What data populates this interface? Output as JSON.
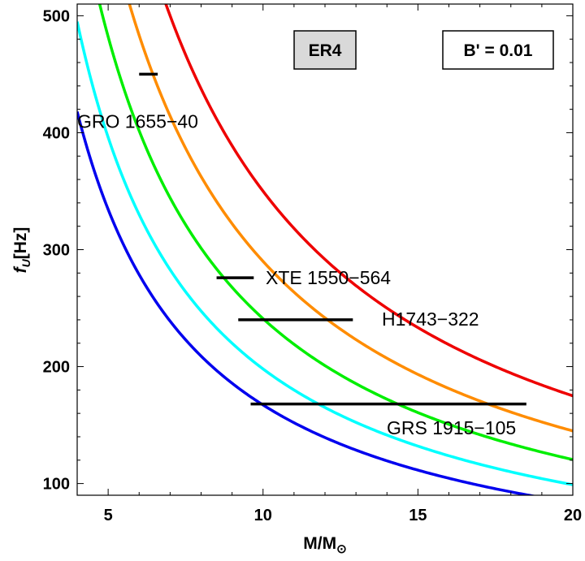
{
  "chart_data": {
    "type": "line",
    "xlabel_main": "M/M",
    "xlabel_sub": "⊙",
    "ylabel_main": "f",
    "ylabel_sub": "U",
    "ylabel_unit": "[Hz]",
    "xlim": [
      4,
      20
    ],
    "ylim": [
      90,
      510
    ],
    "x_ticks": [
      5,
      10,
      15,
      20
    ],
    "y_ticks": [
      100,
      200,
      300,
      400,
      500
    ],
    "model_label": "ER4",
    "param_label": "B' = 0.01",
    "series": [
      {
        "name": "blue",
        "color": "#0000ee",
        "k": 1672
      },
      {
        "name": "cyan",
        "color": "#00ffff",
        "k": 1980
      },
      {
        "name": "green",
        "color": "#00ee00",
        "k": 2410
      },
      {
        "name": "orange",
        "color": "#ff8c00",
        "k": 2900
      },
      {
        "name": "red",
        "color": "#ee0000",
        "k": 3500
      }
    ],
    "sources": [
      {
        "name": "GRO 1655−40",
        "f": 450,
        "m_min": 6.0,
        "m_max": 6.6
      },
      {
        "name": "XTE 1550−564",
        "f": 276,
        "m_min": 8.5,
        "m_max": 9.7
      },
      {
        "name": "H1743−322",
        "f": 240,
        "m_min": 9.2,
        "m_max": 12.9
      },
      {
        "name": "GRS 1915−105",
        "f": 168,
        "m_min": 9.6,
        "m_max": 18.5
      }
    ]
  }
}
